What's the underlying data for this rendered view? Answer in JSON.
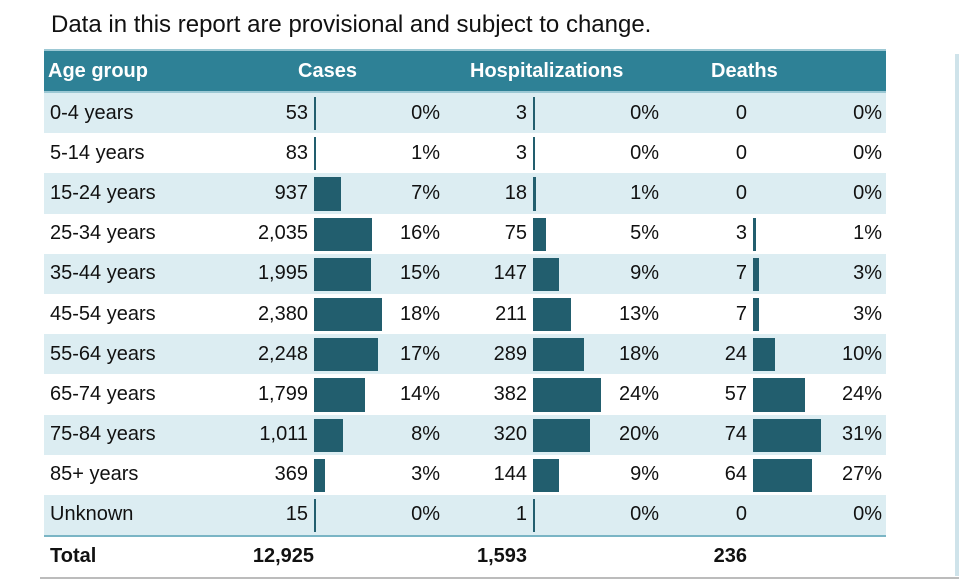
{
  "note": "Data in this report are provisional and subject to change.",
  "headers": {
    "age_group": "Age group",
    "cases": "Cases",
    "hospitalizations": "Hospitalizations",
    "deaths": "Deaths"
  },
  "rows": [
    {
      "age": "0-4 years",
      "cases": "53",
      "cases_pct": "0%",
      "hosp": "3",
      "hosp_pct": "0%",
      "deaths": "0",
      "deaths_pct": "0%"
    },
    {
      "age": "5-14 years",
      "cases": "83",
      "cases_pct": "1%",
      "hosp": "3",
      "hosp_pct": "0%",
      "deaths": "0",
      "deaths_pct": "0%"
    },
    {
      "age": "15-24 years",
      "cases": "937",
      "cases_pct": "7%",
      "hosp": "18",
      "hosp_pct": "1%",
      "deaths": "0",
      "deaths_pct": "0%"
    },
    {
      "age": "25-34 years",
      "cases": "2,035",
      "cases_pct": "16%",
      "hosp": "75",
      "hosp_pct": "5%",
      "deaths": "3",
      "deaths_pct": "1%"
    },
    {
      "age": "35-44 years",
      "cases": "1,995",
      "cases_pct": "15%",
      "hosp": "147",
      "hosp_pct": "9%",
      "deaths": "7",
      "deaths_pct": "3%"
    },
    {
      "age": "45-54 years",
      "cases": "2,380",
      "cases_pct": "18%",
      "hosp": "211",
      "hosp_pct": "13%",
      "deaths": "7",
      "deaths_pct": "3%"
    },
    {
      "age": "55-64 years",
      "cases": "2,248",
      "cases_pct": "17%",
      "hosp": "289",
      "hosp_pct": "18%",
      "deaths": "24",
      "deaths_pct": "10%"
    },
    {
      "age": "65-74 years",
      "cases": "1,799",
      "cases_pct": "14%",
      "hosp": "382",
      "hosp_pct": "24%",
      "deaths": "57",
      "deaths_pct": "24%"
    },
    {
      "age": "75-84 years",
      "cases": "1,011",
      "cases_pct": "8%",
      "hosp": "320",
      "hosp_pct": "20%",
      "deaths": "74",
      "deaths_pct": "31%"
    },
    {
      "age": "85+ years",
      "cases": "369",
      "cases_pct": "3%",
      "hosp": "144",
      "hosp_pct": "9%",
      "deaths": "64",
      "deaths_pct": "27%"
    },
    {
      "age": "Unknown",
      "cases": "15",
      "cases_pct": "0%",
      "hosp": "1",
      "hosp_pct": "0%",
      "deaths": "0",
      "deaths_pct": "0%"
    }
  ],
  "total": {
    "label": "Total",
    "cases": "12,925",
    "hosp": "1,593",
    "deaths": "236"
  },
  "colors": {
    "header_bg": "#2e8196",
    "bar": "#225e6e",
    "row_stripe": "#dcedf2"
  }
}
